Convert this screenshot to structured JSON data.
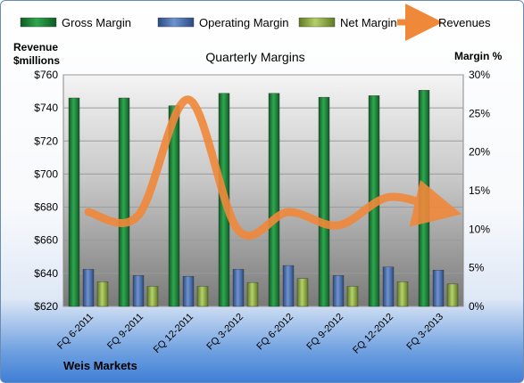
{
  "company": "Weis Markets",
  "chart_data": {
    "type": "bar",
    "title": "Quarterly Margins",
    "categories": [
      "FQ 6-2011",
      "FQ 9-2011",
      "FQ 12-2011",
      "FQ 3-2012",
      "FQ 6-2012",
      "FQ 9-2012",
      "FQ 12-2012",
      "FQ 3-2013"
    ],
    "left_axis": {
      "label_line1": "Revenue",
      "label_line2": "$millions",
      "min": 620,
      "max": 760,
      "step": 20,
      "prefix": "$"
    },
    "right_axis": {
      "label": "Margin %",
      "min": 0,
      "max": 30,
      "step": 5,
      "suffix": "%"
    },
    "series": [
      {
        "name": "Gross Margin",
        "type": "bar",
        "axis": "right",
        "color": "#1e8a3c",
        "values": [
          27.0,
          27.0,
          26.0,
          27.6,
          27.6,
          27.1,
          27.3,
          28.0
        ]
      },
      {
        "name": "Operating Margin",
        "type": "bar",
        "axis": "right",
        "color": "#4a6fb0",
        "values": [
          4.8,
          4.0,
          3.9,
          4.8,
          5.3,
          4.0,
          5.1,
          4.7
        ]
      },
      {
        "name": "Net Margin",
        "type": "bar",
        "axis": "right",
        "color": "#8fb04a",
        "values": [
          3.2,
          2.6,
          2.6,
          3.1,
          3.6,
          2.6,
          3.2,
          2.9
        ]
      },
      {
        "name": "Revenues",
        "type": "line",
        "axis": "left",
        "color": "#f0883a",
        "values": [
          677,
          675,
          745,
          666,
          677,
          669,
          686,
          679
        ]
      }
    ],
    "legend_position": "top",
    "grid": true
  }
}
